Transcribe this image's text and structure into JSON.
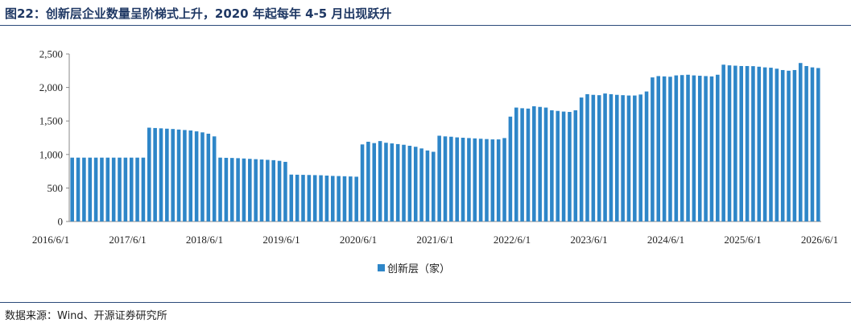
{
  "header": {
    "title": "图22：创新层企业数量呈阶梯式上升，2020 年起每年 4-5 月出现跃升"
  },
  "footer": {
    "source": "数据来源：Wind、开源证券研究所"
  },
  "colors": {
    "bar": "#2e86c8",
    "bar_edge": "#1f6aa5",
    "axis": "#888888",
    "title": "#1f3864"
  },
  "chart_data": {
    "type": "bar",
    "title": "",
    "xlabel": "",
    "ylabel": "",
    "ylim": [
      0,
      2500
    ],
    "y_ticks": [
      "0",
      "500",
      "1,000",
      "1,500",
      "2,000",
      "2,500"
    ],
    "x_tick_labels": [
      "2016/6/1",
      "2017/6/1",
      "2018/6/1",
      "2019/6/1",
      "2020/6/1",
      "2021/6/1",
      "2022/6/1",
      "2023/6/1",
      "2024/6/1",
      "2025/6/1",
      "2026/6/1"
    ],
    "legend": {
      "position": "bottom-center",
      "label": "创新层（家）"
    },
    "grid": false,
    "series": [
      {
        "name": "创新层（家）",
        "values": [
          953,
          953,
          953,
          953,
          953,
          953,
          953,
          953,
          953,
          953,
          953,
          953,
          953,
          1400,
          1395,
          1390,
          1385,
          1380,
          1372,
          1365,
          1358,
          1345,
          1330,
          1310,
          1270,
          953,
          950,
          948,
          945,
          940,
          935,
          930,
          925,
          920,
          915,
          905,
          890,
          700,
          698,
          696,
          694,
          692,
          690,
          685,
          680,
          678,
          675,
          672,
          668,
          1150,
          1190,
          1170,
          1200,
          1175,
          1165,
          1155,
          1145,
          1130,
          1115,
          1090,
          1060,
          1040,
          1280,
          1270,
          1265,
          1255,
          1250,
          1245,
          1240,
          1235,
          1230,
          1225,
          1225,
          1245,
          1565,
          1700,
          1690,
          1685,
          1720,
          1710,
          1700,
          1660,
          1650,
          1640,
          1635,
          1660,
          1850,
          1900,
          1890,
          1885,
          1910,
          1900,
          1890,
          1885,
          1880,
          1880,
          1895,
          1940,
          2150,
          2170,
          2165,
          2160,
          2180,
          2185,
          2190,
          2180,
          2175,
          2170,
          2165,
          2190,
          2340,
          2330,
          2325,
          2320,
          2320,
          2318,
          2310,
          2300,
          2295,
          2280,
          2260,
          2250,
          2260,
          2365,
          2320,
          2300,
          2290
        ]
      }
    ]
  }
}
